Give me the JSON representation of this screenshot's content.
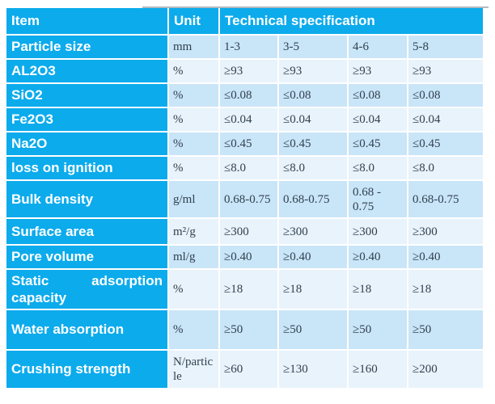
{
  "colors": {
    "header_blue": "#0cabec",
    "row_shade_dark": "#c9e5f8",
    "row_shade_light": "#e8f3fc",
    "header_text": "#ffffff",
    "data_text": "#31404f"
  },
  "table": {
    "header": {
      "item": "Item",
      "unit": "Unit",
      "spec": "Technical specification"
    },
    "rows": [
      {
        "item": "Particle size",
        "unit": "mm",
        "values": [
          "1-3",
          "3-5",
          "4-6",
          "5-8"
        ]
      },
      {
        "item": "AL2O3",
        "unit": "%",
        "values": [
          "≥93",
          "≥93",
          "≥93",
          "≥93"
        ]
      },
      {
        "item": "SiO2",
        "unit": "%",
        "values": [
          "≤0.08",
          "≤0.08",
          "≤0.08",
          "≤0.08"
        ]
      },
      {
        "item": "Fe2O3",
        "unit": "%",
        "values": [
          "≤0.04",
          "≤0.04",
          "≤0.04",
          "≤0.04"
        ]
      },
      {
        "item": "Na2O",
        "unit": "%",
        "values": [
          "≤0.45",
          "≤0.45",
          "≤0.45",
          "≤0.45"
        ]
      },
      {
        "item": "loss on ignition",
        "unit": "%",
        "values": [
          "≤8.0",
          "≤8.0",
          "≤8.0",
          "≤8.0"
        ]
      },
      {
        "item": "Bulk density",
        "unit": "g/ml",
        "values": [
          "0.68-0.75",
          "0.68-0.75",
          "0.68 - 0.75",
          "0.68-0.75"
        ]
      },
      {
        "item": "Surface area",
        "unit": "m²/g",
        "values": [
          "≥300",
          "≥300",
          "≥300",
          "≥300"
        ]
      },
      {
        "item": "Pore volume",
        "unit": "ml/g",
        "values": [
          "≥0.40",
          "≥0.40",
          "≥0.40",
          "≥0.40"
        ]
      },
      {
        "item": "Static adsorption capacity",
        "unit": "%",
        "values": [
          "≥18",
          "≥18",
          "≥18",
          "≥18"
        ]
      },
      {
        "item": "Water absorption",
        "unit": "%",
        "values": [
          "≥50",
          "≥50",
          "≥50",
          "≥50"
        ]
      },
      {
        "item": "Crushing strength",
        "unit": "N/particle",
        "values": [
          "≥60",
          "≥130",
          "≥160",
          "≥200"
        ]
      }
    ]
  }
}
